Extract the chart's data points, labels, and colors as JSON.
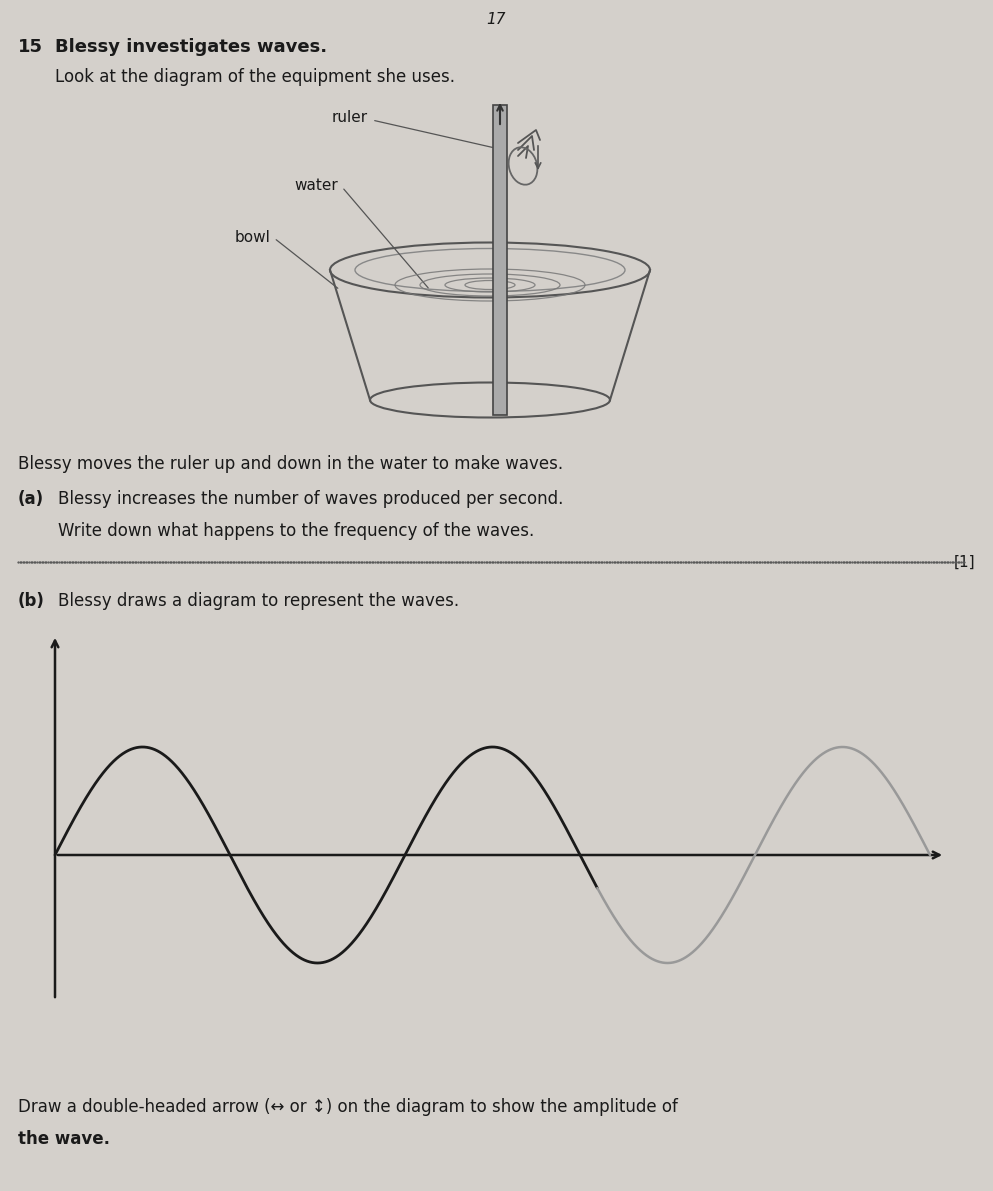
{
  "page_number": "17",
  "question_number": "15",
  "title_text": "Blessy investigates waves.",
  "subtitle": "Look at the diagram of the equipment she uses.",
  "label_ruler": "ruler",
  "label_water": "water",
  "label_bowl": "bowl",
  "body_text": "Blessy moves the ruler up and down in the water to make waves.",
  "part_a_label": "(a)",
  "part_a_text": "Blessy increases the number of waves produced per second.",
  "part_a_sub": "Write down what happens to the frequency of the waves.",
  "mark_a": "[1]",
  "part_b_label": "(b)",
  "part_b_text": "Blessy draws a diagram to represent the waves.",
  "part_b_instruction": "Draw a double-headed arrow (↔ or ↕) on the diagram to show the amplitude of",
  "part_b_instruction2": "the wave.",
  "bg_color": "#d4d0cb",
  "text_color": "#1a1a1a",
  "wave_dark_color": "#1a1a1a",
  "wave_light_color": "#999999",
  "axis_color": "#1a1a1a",
  "bowl_color": "#555555",
  "ruler_color": "#aaaaaa"
}
